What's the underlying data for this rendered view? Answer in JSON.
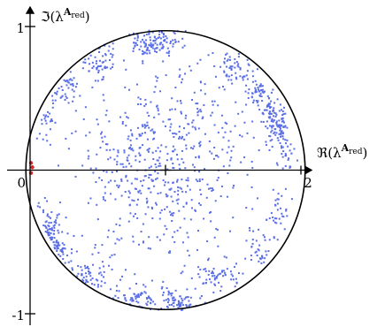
{
  "chart_data": {
    "type": "scatter",
    "title": "",
    "xlabel": {
      "prefix": "ℜ(λ",
      "sup": "A",
      "sub": "red",
      "suffix": ")"
    },
    "ylabel": {
      "prefix": "ℑ(λ",
      "sup": "A",
      "sub": "red",
      "suffix": ")"
    },
    "xlim": [
      0,
      2
    ],
    "ylim": [
      -1,
      1
    ],
    "x_tick_labels": [
      "0",
      "2"
    ],
    "y_tick_labels": [
      "1",
      "-1"
    ],
    "grid": false,
    "reference_circle": {
      "center": [
        1,
        0
      ],
      "radius": 1
    },
    "colors": {
      "points": "#5a6ee6",
      "highlight": "#e02020",
      "axis": "#000000"
    },
    "series": [
      {
        "color_key": "points",
        "clusters": [
          {
            "center": [
              0.86,
              0.88
            ],
            "spread": [
              0.08,
              0.05
            ],
            "count": 70
          },
          {
            "center": [
              1.0,
              0.9
            ],
            "spread": [
              0.06,
              0.04
            ],
            "count": 40
          },
          {
            "center": [
              0.5,
              0.77
            ],
            "spread": [
              0.09,
              0.06
            ],
            "count": 55
          },
          {
            "center": [
              0.25,
              0.6
            ],
            "spread": [
              0.06,
              0.07
            ],
            "count": 40
          },
          {
            "center": [
              0.1,
              0.35
            ],
            "spread": [
              0.04,
              0.09
            ],
            "count": 25
          },
          {
            "center": [
              1.5,
              0.7
            ],
            "spread": [
              0.07,
              0.06
            ],
            "count": 55
          },
          {
            "center": [
              1.68,
              0.55
            ],
            "spread": [
              0.05,
              0.05
            ],
            "count": 45
          },
          {
            "center": [
              1.77,
              0.42
            ],
            "spread": [
              0.05,
              0.05
            ],
            "count": 45
          },
          {
            "center": [
              1.83,
              0.3
            ],
            "spread": [
              0.04,
              0.06
            ],
            "count": 80
          },
          {
            "center": [
              1.9,
              0.12
            ],
            "spread": [
              0.04,
              0.06
            ],
            "count": 25
          },
          {
            "center": [
              0.12,
              -0.45
            ],
            "spread": [
              0.05,
              0.12
            ],
            "count": 60
          },
          {
            "center": [
              0.2,
              -0.6
            ],
            "spread": [
              0.05,
              0.07
            ],
            "count": 45
          },
          {
            "center": [
              0.4,
              -0.75
            ],
            "spread": [
              0.08,
              0.06
            ],
            "count": 50
          },
          {
            "center": [
              0.8,
              -0.88
            ],
            "spread": [
              0.12,
              0.05
            ],
            "count": 70
          },
          {
            "center": [
              1.1,
              -0.92
            ],
            "spread": [
              0.06,
              0.04
            ],
            "count": 60
          },
          {
            "center": [
              1.4,
              -0.75
            ],
            "spread": [
              0.1,
              0.05
            ],
            "count": 55
          },
          {
            "center": [
              1.7,
              -0.55
            ],
            "spread": [
              0.06,
              0.06
            ],
            "count": 35
          },
          {
            "center": [
              1.85,
              -0.3
            ],
            "spread": [
              0.04,
              0.08
            ],
            "count": 30
          },
          {
            "center": [
              1.0,
              0.1
            ],
            "spread": [
              0.3,
              0.35
            ],
            "count": 230
          },
          {
            "center": [
              0.8,
              -0.15
            ],
            "spread": [
              0.25,
              0.3
            ],
            "count": 130
          },
          {
            "center": [
              1.3,
              0.2
            ],
            "spread": [
              0.25,
              0.3
            ],
            "count": 90
          },
          {
            "center": [
              1.0,
              0.0
            ],
            "spread": [
              0.45,
              0.55
            ],
            "count": 160
          }
        ]
      },
      {
        "color_key": "highlight",
        "points": [
          [
            0.0,
            0.05
          ],
          [
            0.0,
            -0.02
          ],
          [
            0.01,
            0.02
          ]
        ]
      }
    ]
  }
}
